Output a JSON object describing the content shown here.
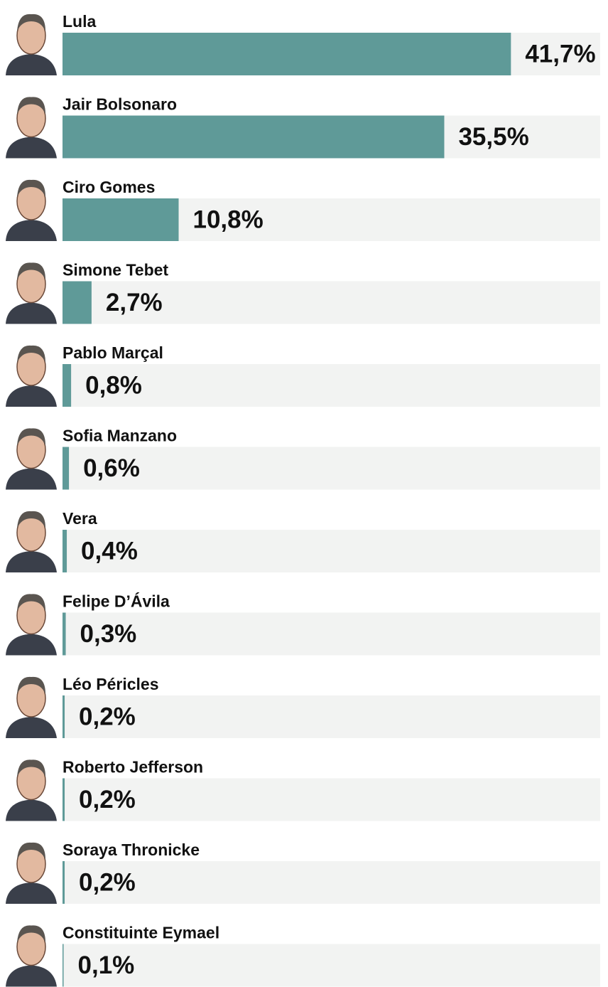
{
  "chart_data": {
    "type": "bar",
    "orientation": "horizontal",
    "categories": [
      "Lula",
      "Jair Bolsonaro",
      "Ciro Gomes",
      "Simone Tebet",
      "Pablo Marçal",
      "Sofia Manzano",
      "Vera",
      "Felipe D’Ávila",
      "Léo Péricles",
      "Roberto Jefferson",
      "Soraya Thronicke",
      "Constituinte Eymael"
    ],
    "values": [
      41.7,
      35.5,
      10.8,
      2.7,
      0.8,
      0.6,
      0.4,
      0.3,
      0.2,
      0.2,
      0.2,
      0.1
    ],
    "value_labels": [
      "41,7%",
      "35,5%",
      "10,8%",
      "2,7%",
      "0,8%",
      "0,6%",
      "0,4%",
      "0,3%",
      "0,2%",
      "0,2%",
      "0,2%",
      "0,1%"
    ],
    "xlim": [
      0,
      50
    ],
    "color": "#5f9a98"
  }
}
